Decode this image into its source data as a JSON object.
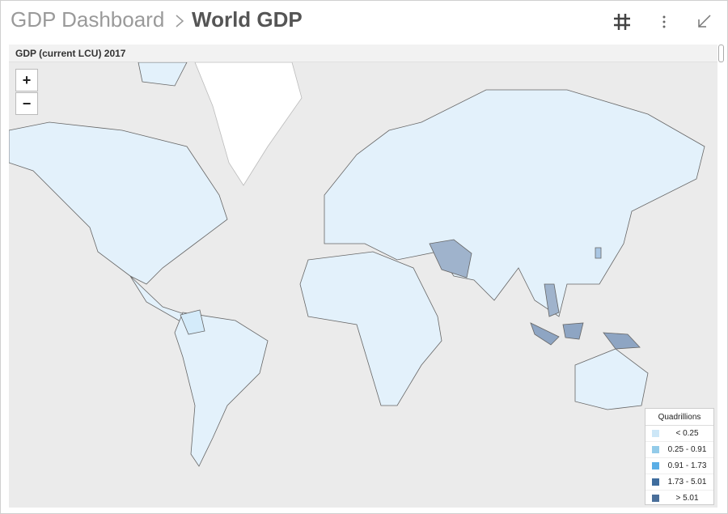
{
  "header": {
    "breadcrumb": "GDP Dashboard",
    "title": "World GDP"
  },
  "panel": {
    "title": "GDP (current LCU) 2017"
  },
  "zoom": {
    "in": "+",
    "out": "−"
  },
  "legend": {
    "title": "Quadrillions",
    "items": [
      {
        "label": "< 0.25",
        "color": "#cde7f7"
      },
      {
        "label": "0.25 - 0.91",
        "color": "#93cbe9"
      },
      {
        "label": "0.91 - 1.73",
        "color": "#5aaee6"
      },
      {
        "label": "1.73 - 5.01",
        "color": "#3f6d9e"
      },
      {
        "label": "> 5.01",
        "color": "#4a6f9a"
      }
    ]
  }
}
